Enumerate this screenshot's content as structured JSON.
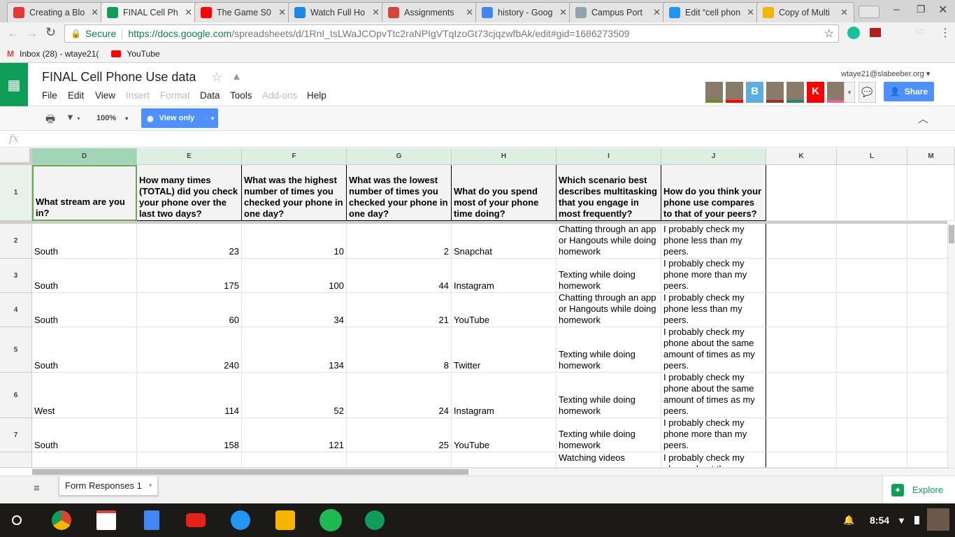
{
  "browser": {
    "tabs": [
      {
        "title": "Creating a Blo",
        "color": "#e53935"
      },
      {
        "title": "FINAL Cell Ph",
        "color": "#0f9d58",
        "active": true
      },
      {
        "title": "The Game S0",
        "color": "#ff0000"
      },
      {
        "title": "Watch Full Ho",
        "color": "#1e88e5"
      },
      {
        "title": "Assignments",
        "color": "#d44638"
      },
      {
        "title": "history - Goog",
        "color": "#4285f4"
      },
      {
        "title": "Campus Port",
        "color": "#90a4ae"
      },
      {
        "title": "Edit “cell phon",
        "color": "#2196f3"
      },
      {
        "title": "Copy of Multi",
        "color": "#f4b400"
      }
    ],
    "secure_label": "Secure",
    "url_host": "https://docs.google.com",
    "url_path": "/spreadsheets/d/1RnI_tsLWaJCOpvTtc2raNPIgVTqIzoGt73cjqzwfbAk/edit#gid=1686273509",
    "profile_initials": "SD",
    "bookmarks": [
      {
        "label": "Inbox (28) - wtaye21("
      },
      {
        "label": "YouTube"
      }
    ]
  },
  "doc": {
    "title": "FINAL Cell Phone Use data",
    "account": "wtaye21@slabeeber.org",
    "menus": [
      {
        "label": "File",
        "disabled": false
      },
      {
        "label": "Edit",
        "disabled": false
      },
      {
        "label": "View",
        "disabled": false
      },
      {
        "label": "Insert",
        "disabled": true
      },
      {
        "label": "Format",
        "disabled": true
      },
      {
        "label": "Data",
        "disabled": false
      },
      {
        "label": "Tools",
        "disabled": false
      },
      {
        "label": "Add-ons",
        "disabled": true
      },
      {
        "label": "Help",
        "disabled": false
      }
    ],
    "share_label": "Share",
    "collaborators": [
      {
        "color": "#6b8e23"
      },
      {
        "color": "#ff0000"
      },
      {
        "initial": "B",
        "color": "#5dade2"
      },
      {
        "color": "#a52a2a"
      },
      {
        "color": "#1a8a6e"
      },
      {
        "initial": "K",
        "color": "#ff0000"
      },
      {
        "color": "#f06292"
      }
    ],
    "zoom": "100%",
    "view_only_label": "View only",
    "fx_label": "fx"
  },
  "sheet": {
    "columns": [
      "D",
      "E",
      "F",
      "G",
      "H",
      "I",
      "J",
      "K",
      "L",
      "M"
    ],
    "row_numbers": [
      "1",
      "2",
      "3",
      "4",
      "5",
      "6",
      "7",
      ""
    ],
    "headers": [
      "What stream are you in?",
      "How many times (TOTAL) did you check your phone over the last two days?",
      "What was the highest number of times you checked your phone in one day?",
      "What was the lowest number of times you checked your phone in one day?",
      "What do you spend most of your phone time doing?",
      "Which scenario best describes multitasking that you engage in most frequently?",
      "How do you think your phone use compares to that of your peers?"
    ],
    "rows": [
      [
        "South",
        "23",
        "10",
        "2",
        "Snapchat",
        "Chatting through an app or Hangouts while doing homework",
        "I probably check my phone less than my peers."
      ],
      [
        "South",
        "175",
        "100",
        "44",
        "Instagram",
        "Texting while doing homework",
        "I probably check my phone more than my peers."
      ],
      [
        "South",
        "60",
        "34",
        "21",
        "YouTube",
        "Chatting through an app or Hangouts while doing homework",
        "I probably check my phone less than my peers."
      ],
      [
        "South",
        "240",
        "134",
        "8",
        "Twitter",
        "Texting while doing homework",
        "I probably check my phone about the same amount of times as my peers."
      ],
      [
        "West",
        "114",
        "52",
        "24",
        "Instagram",
        "Texting while doing homework",
        "I probably check my phone about the same amount of times as my peers."
      ],
      [
        "South",
        "158",
        "121",
        "25",
        "YouTube",
        "Texting while doing homework",
        "I probably check my phone more than my peers."
      ],
      [
        "",
        "",
        "",
        "",
        "",
        "Watching videos",
        "I probably check my phone about the"
      ]
    ],
    "sheet_tab": "Form Responses 1",
    "explore_label": "Explore"
  },
  "shelf": {
    "time": "8:54"
  }
}
